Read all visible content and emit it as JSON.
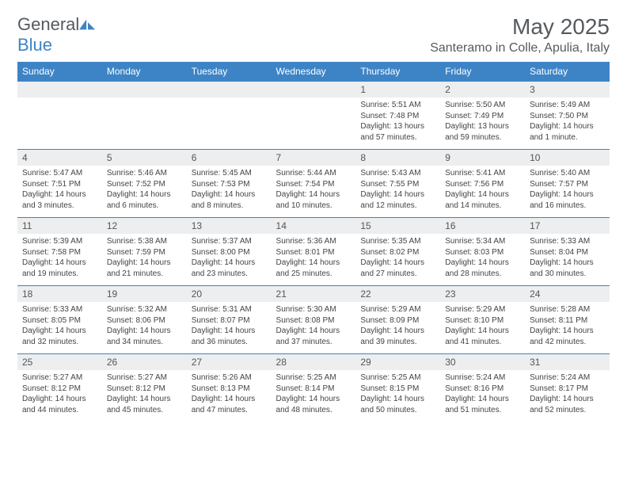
{
  "brand": {
    "part1": "General",
    "part2": "Blue"
  },
  "title": "May 2025",
  "location": "Santeramo in Colle, Apulia, Italy",
  "colors": {
    "header_bg": "#3d84c6",
    "header_text": "#ffffff",
    "daynum_bg": "#eceeef",
    "border": "#3d84c6",
    "text": "#444444",
    "title_text": "#565a5e"
  },
  "weekdays": [
    "Sunday",
    "Monday",
    "Tuesday",
    "Wednesday",
    "Thursday",
    "Friday",
    "Saturday"
  ],
  "weeks": [
    [
      {
        "n": "",
        "sr": "",
        "ss": "",
        "dl": ""
      },
      {
        "n": "",
        "sr": "",
        "ss": "",
        "dl": ""
      },
      {
        "n": "",
        "sr": "",
        "ss": "",
        "dl": ""
      },
      {
        "n": "",
        "sr": "",
        "ss": "",
        "dl": ""
      },
      {
        "n": "1",
        "sr": "Sunrise: 5:51 AM",
        "ss": "Sunset: 7:48 PM",
        "dl": "Daylight: 13 hours and 57 minutes."
      },
      {
        "n": "2",
        "sr": "Sunrise: 5:50 AM",
        "ss": "Sunset: 7:49 PM",
        "dl": "Daylight: 13 hours and 59 minutes."
      },
      {
        "n": "3",
        "sr": "Sunrise: 5:49 AM",
        "ss": "Sunset: 7:50 PM",
        "dl": "Daylight: 14 hours and 1 minute."
      }
    ],
    [
      {
        "n": "4",
        "sr": "Sunrise: 5:47 AM",
        "ss": "Sunset: 7:51 PM",
        "dl": "Daylight: 14 hours and 3 minutes."
      },
      {
        "n": "5",
        "sr": "Sunrise: 5:46 AM",
        "ss": "Sunset: 7:52 PM",
        "dl": "Daylight: 14 hours and 6 minutes."
      },
      {
        "n": "6",
        "sr": "Sunrise: 5:45 AM",
        "ss": "Sunset: 7:53 PM",
        "dl": "Daylight: 14 hours and 8 minutes."
      },
      {
        "n": "7",
        "sr": "Sunrise: 5:44 AM",
        "ss": "Sunset: 7:54 PM",
        "dl": "Daylight: 14 hours and 10 minutes."
      },
      {
        "n": "8",
        "sr": "Sunrise: 5:43 AM",
        "ss": "Sunset: 7:55 PM",
        "dl": "Daylight: 14 hours and 12 minutes."
      },
      {
        "n": "9",
        "sr": "Sunrise: 5:41 AM",
        "ss": "Sunset: 7:56 PM",
        "dl": "Daylight: 14 hours and 14 minutes."
      },
      {
        "n": "10",
        "sr": "Sunrise: 5:40 AM",
        "ss": "Sunset: 7:57 PM",
        "dl": "Daylight: 14 hours and 16 minutes."
      }
    ],
    [
      {
        "n": "11",
        "sr": "Sunrise: 5:39 AM",
        "ss": "Sunset: 7:58 PM",
        "dl": "Daylight: 14 hours and 19 minutes."
      },
      {
        "n": "12",
        "sr": "Sunrise: 5:38 AM",
        "ss": "Sunset: 7:59 PM",
        "dl": "Daylight: 14 hours and 21 minutes."
      },
      {
        "n": "13",
        "sr": "Sunrise: 5:37 AM",
        "ss": "Sunset: 8:00 PM",
        "dl": "Daylight: 14 hours and 23 minutes."
      },
      {
        "n": "14",
        "sr": "Sunrise: 5:36 AM",
        "ss": "Sunset: 8:01 PM",
        "dl": "Daylight: 14 hours and 25 minutes."
      },
      {
        "n": "15",
        "sr": "Sunrise: 5:35 AM",
        "ss": "Sunset: 8:02 PM",
        "dl": "Daylight: 14 hours and 27 minutes."
      },
      {
        "n": "16",
        "sr": "Sunrise: 5:34 AM",
        "ss": "Sunset: 8:03 PM",
        "dl": "Daylight: 14 hours and 28 minutes."
      },
      {
        "n": "17",
        "sr": "Sunrise: 5:33 AM",
        "ss": "Sunset: 8:04 PM",
        "dl": "Daylight: 14 hours and 30 minutes."
      }
    ],
    [
      {
        "n": "18",
        "sr": "Sunrise: 5:33 AM",
        "ss": "Sunset: 8:05 PM",
        "dl": "Daylight: 14 hours and 32 minutes."
      },
      {
        "n": "19",
        "sr": "Sunrise: 5:32 AM",
        "ss": "Sunset: 8:06 PM",
        "dl": "Daylight: 14 hours and 34 minutes."
      },
      {
        "n": "20",
        "sr": "Sunrise: 5:31 AM",
        "ss": "Sunset: 8:07 PM",
        "dl": "Daylight: 14 hours and 36 minutes."
      },
      {
        "n": "21",
        "sr": "Sunrise: 5:30 AM",
        "ss": "Sunset: 8:08 PM",
        "dl": "Daylight: 14 hours and 37 minutes."
      },
      {
        "n": "22",
        "sr": "Sunrise: 5:29 AM",
        "ss": "Sunset: 8:09 PM",
        "dl": "Daylight: 14 hours and 39 minutes."
      },
      {
        "n": "23",
        "sr": "Sunrise: 5:29 AM",
        "ss": "Sunset: 8:10 PM",
        "dl": "Daylight: 14 hours and 41 minutes."
      },
      {
        "n": "24",
        "sr": "Sunrise: 5:28 AM",
        "ss": "Sunset: 8:11 PM",
        "dl": "Daylight: 14 hours and 42 minutes."
      }
    ],
    [
      {
        "n": "25",
        "sr": "Sunrise: 5:27 AM",
        "ss": "Sunset: 8:12 PM",
        "dl": "Daylight: 14 hours and 44 minutes."
      },
      {
        "n": "26",
        "sr": "Sunrise: 5:27 AM",
        "ss": "Sunset: 8:12 PM",
        "dl": "Daylight: 14 hours and 45 minutes."
      },
      {
        "n": "27",
        "sr": "Sunrise: 5:26 AM",
        "ss": "Sunset: 8:13 PM",
        "dl": "Daylight: 14 hours and 47 minutes."
      },
      {
        "n": "28",
        "sr": "Sunrise: 5:25 AM",
        "ss": "Sunset: 8:14 PM",
        "dl": "Daylight: 14 hours and 48 minutes."
      },
      {
        "n": "29",
        "sr": "Sunrise: 5:25 AM",
        "ss": "Sunset: 8:15 PM",
        "dl": "Daylight: 14 hours and 50 minutes."
      },
      {
        "n": "30",
        "sr": "Sunrise: 5:24 AM",
        "ss": "Sunset: 8:16 PM",
        "dl": "Daylight: 14 hours and 51 minutes."
      },
      {
        "n": "31",
        "sr": "Sunrise: 5:24 AM",
        "ss": "Sunset: 8:17 PM",
        "dl": "Daylight: 14 hours and 52 minutes."
      }
    ]
  ]
}
